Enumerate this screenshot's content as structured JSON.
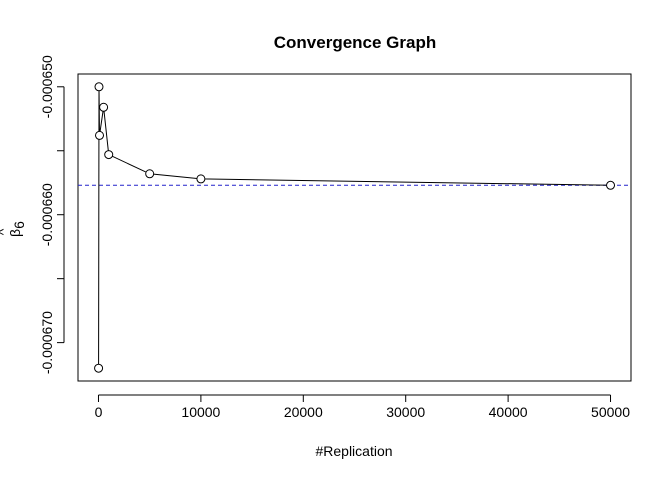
{
  "chart_data": {
    "type": "line",
    "title": "Convergence Graph",
    "xlabel": "#Replication",
    "ylabel": {
      "symbol": "β",
      "subscript": "6",
      "accent": "^"
    },
    "x": [
      10,
      50,
      100,
      500,
      1000,
      5000,
      10000,
      50000
    ],
    "y": [
      -0.000672,
      -0.00065,
      -0.0006538,
      -0.0006516,
      -0.0006553,
      -0.0006568,
      -0.0006572,
      -0.0006577
    ],
    "xlim": [
      -2000,
      52000
    ],
    "ylim": [
      -0.000673,
      -0.000649
    ],
    "x_ticks": [
      0,
      10000,
      20000,
      30000,
      40000,
      50000
    ],
    "x_tick_labels": [
      "0",
      "10000",
      "20000",
      "30000",
      "40000",
      "50000"
    ],
    "y_ticks": [
      -0.00065,
      -0.000655,
      -0.00066,
      -0.000665,
      -0.00067
    ],
    "y_tick_labels": [
      "-0.000650",
      "",
      "-0.000660",
      "",
      "-0.000670"
    ],
    "reference_line": {
      "y": -0.0006577,
      "style": "dashed",
      "color": "#2222cc"
    },
    "grid": false,
    "legend": "none",
    "line_color": "#000000",
    "marker": "open-circle"
  }
}
